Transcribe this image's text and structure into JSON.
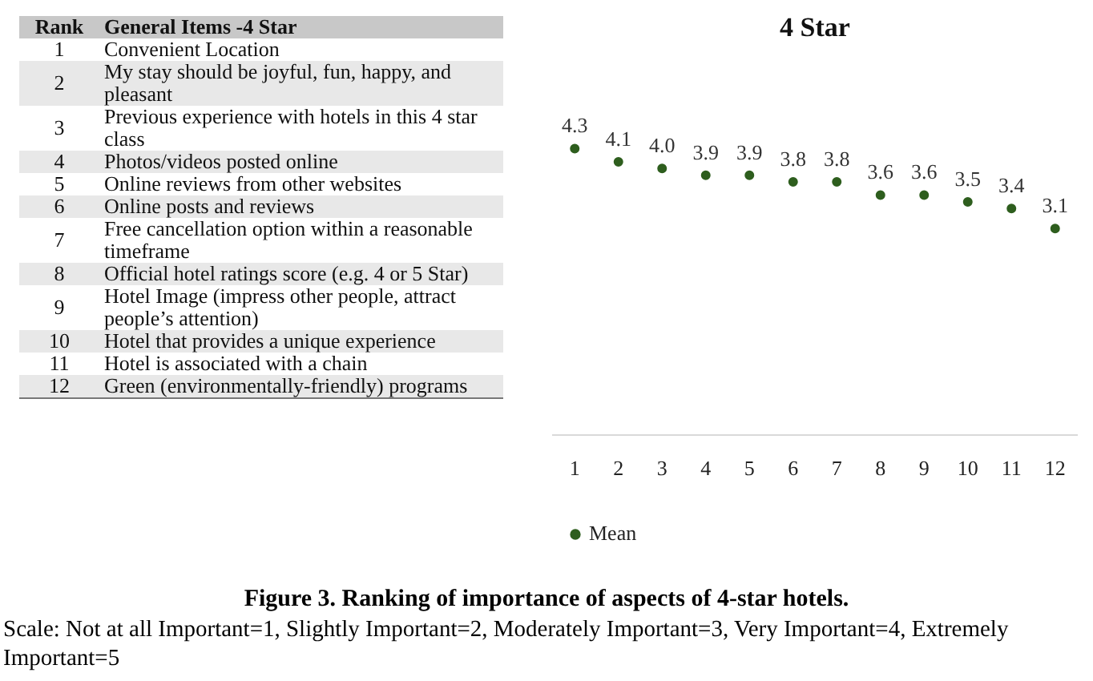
{
  "chart_data": {
    "type": "scatter",
    "title": "4 Star",
    "categories": [
      "1",
      "2",
      "3",
      "4",
      "5",
      "6",
      "7",
      "8",
      "9",
      "10",
      "11",
      "12"
    ],
    "series": [
      {
        "name": "Mean",
        "color": "#2e5e1e",
        "values": [
          4.3,
          4.1,
          4.0,
          3.9,
          3.9,
          3.8,
          3.8,
          3.6,
          3.6,
          3.5,
          3.4,
          3.1
        ],
        "value_labels": [
          "4.3",
          "4.1",
          "4.0",
          "3.9",
          "3.9",
          "3.8",
          "3.8",
          "3.6",
          "3.6",
          "3.5",
          "3.4",
          "3.1"
        ]
      }
    ],
    "legend": "bottom",
    "grid": false,
    "marker": "circle",
    "tick_labels": "x",
    "annotations": [
      "Rank",
      "General Items -4 Star",
      "Convenient Location",
      "My stay should be joyful, fun, happy, and pleasant",
      "Previous experience with hotels in this 4 star class",
      "Photos/videos posted online",
      "Online reviews from other websites",
      "Online posts and reviews",
      "Free cancellation option within a reasonable timeframe",
      "Official hotel ratings score (e.g. 4 or 5 Star)",
      "Hotel Image (impress other people, attract people’s attention)",
      "Hotel that provides a unique experience",
      "Hotel is associated with a chain",
      "Green (environmentally-friendly) programs",
      "Figure 3. Ranking of importance of aspects of 4-star hotels.",
      "Scale: Not at all Important=1, Slightly Important=2, Moderately Important=3, Very Important=4, Extremely Important=5"
    ]
  }
}
